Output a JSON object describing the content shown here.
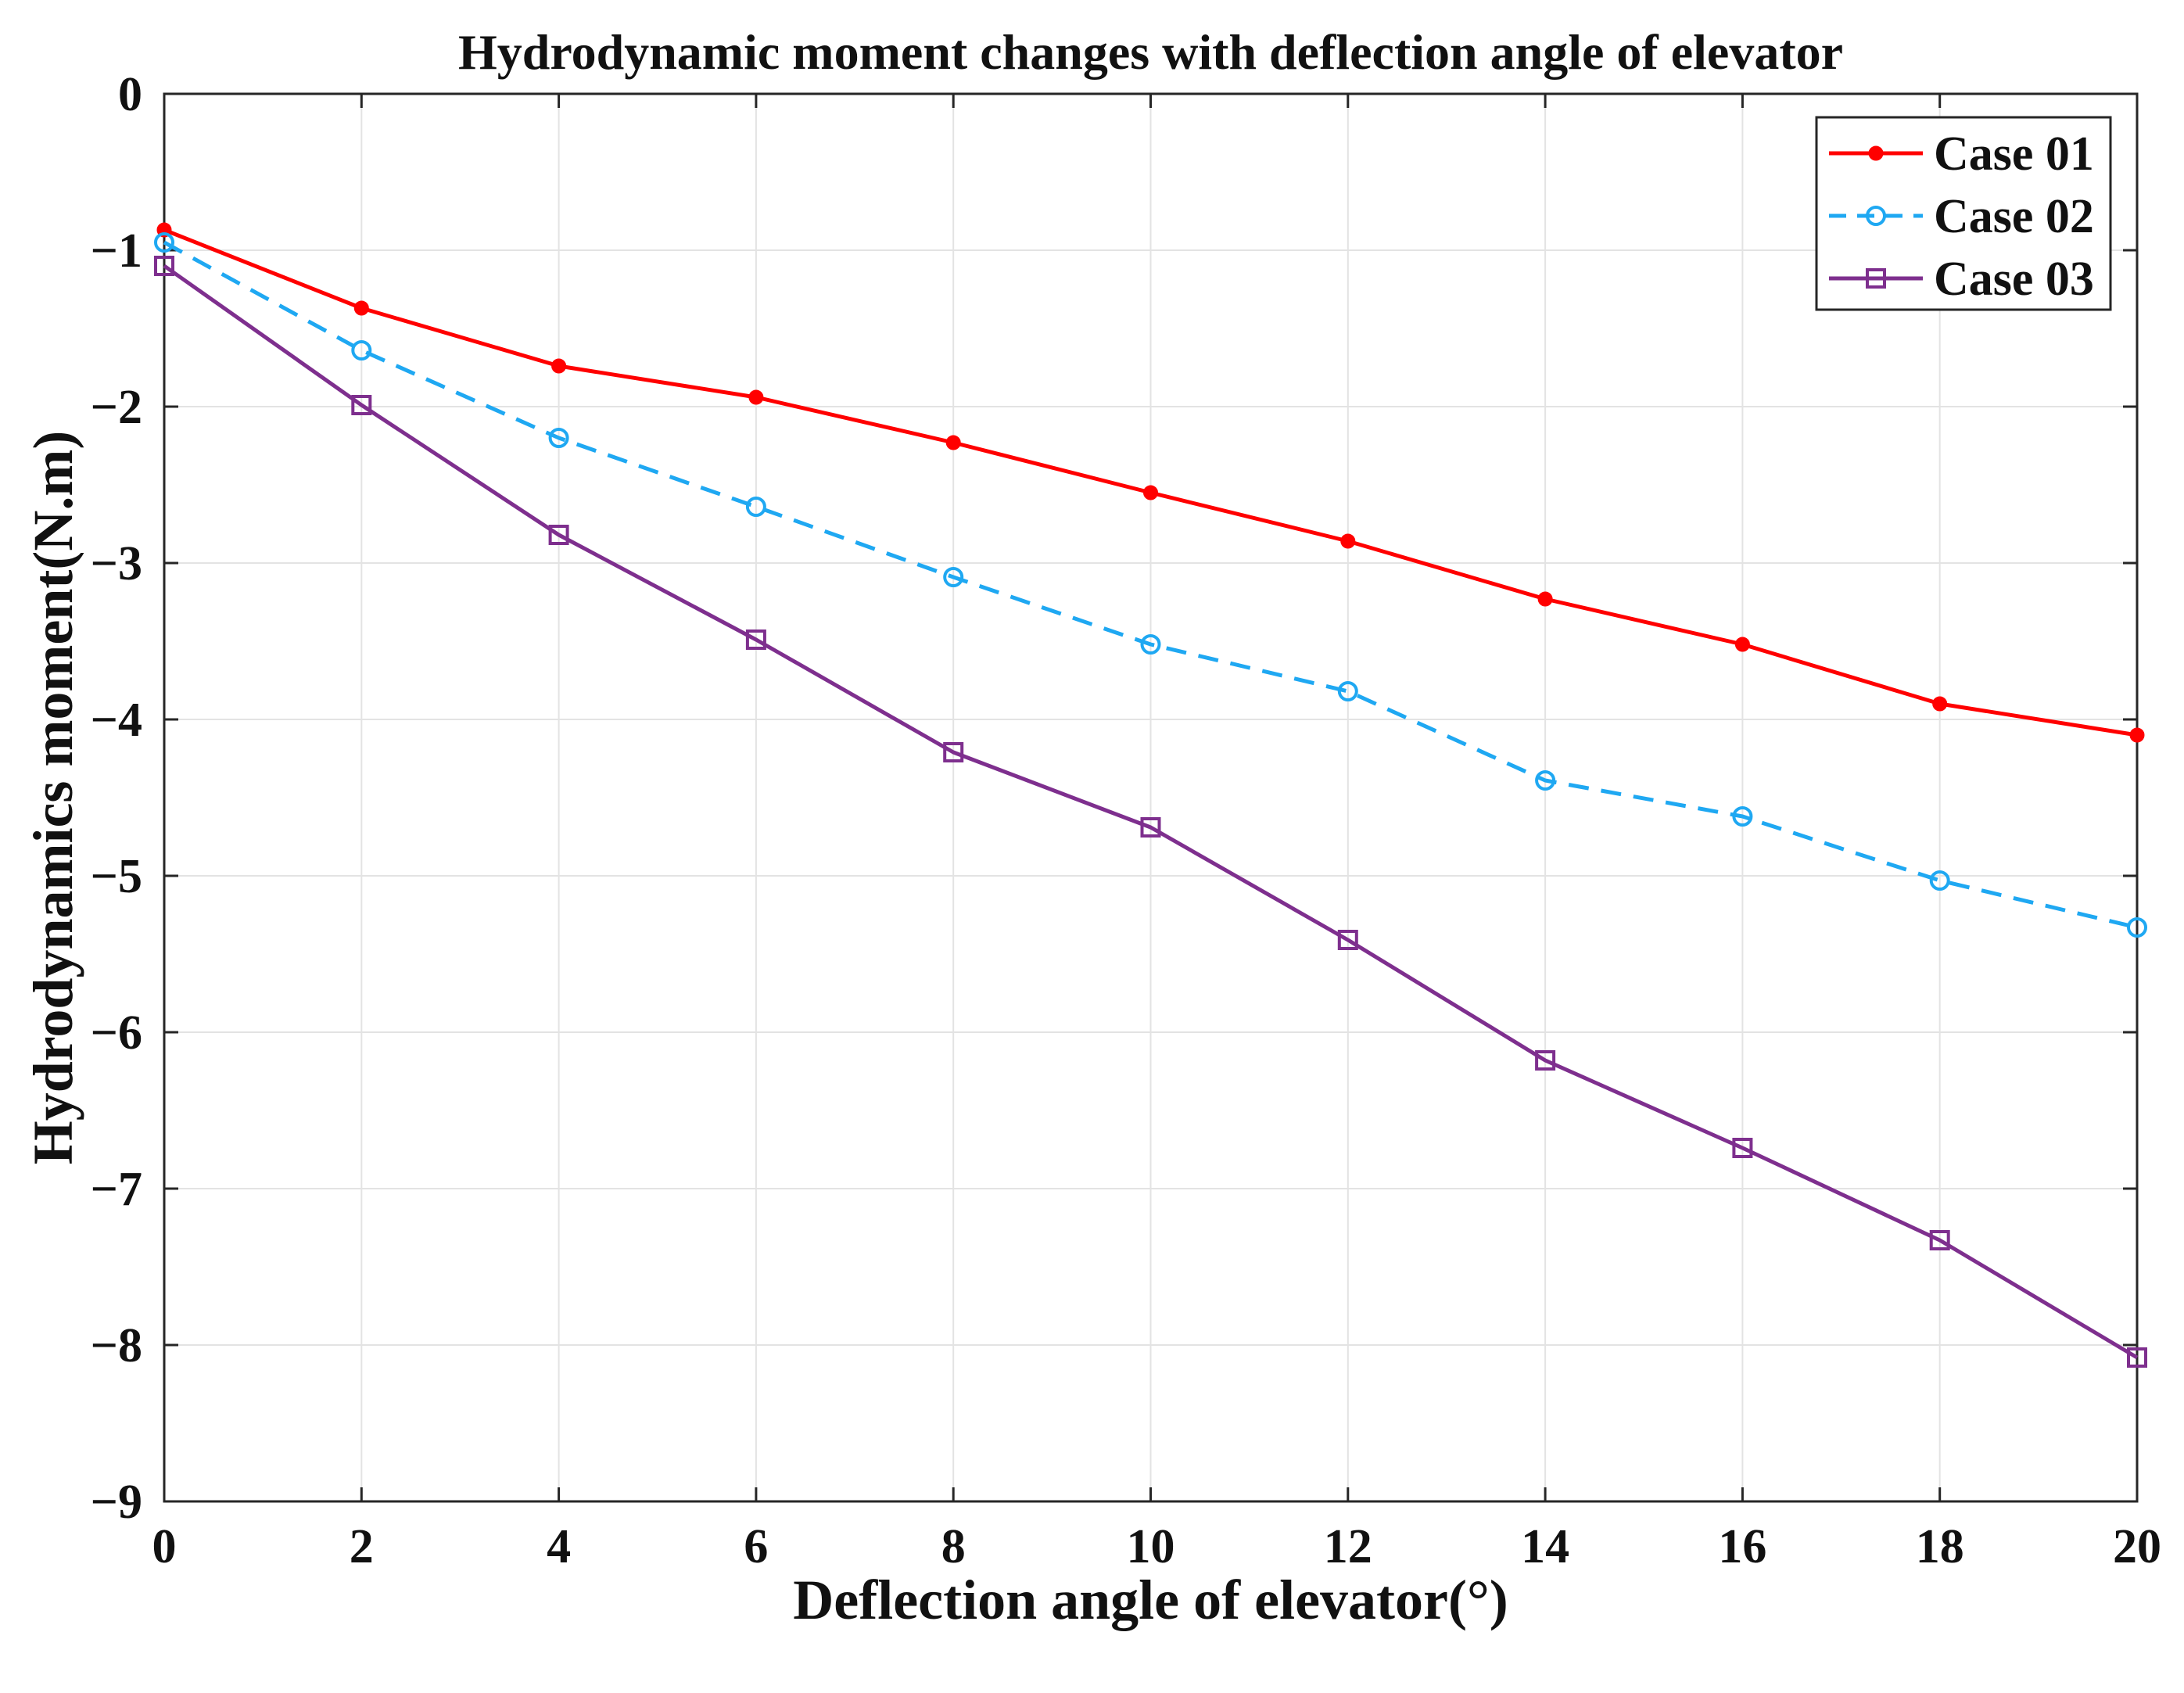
{
  "chart_data": {
    "type": "line",
    "title": "Hydrodynamic moment changes with deflection angle of elevator",
    "xlabel": "Deflection angle of elevator(°)",
    "ylabel": "Hydrodynamics moment(N.m)",
    "xlim": [
      0,
      20
    ],
    "ylim": [
      -9,
      0
    ],
    "xticks": [
      0,
      2,
      4,
      6,
      8,
      10,
      12,
      14,
      16,
      18,
      20
    ],
    "yticks": [
      0,
      -1,
      -2,
      -3,
      -4,
      -5,
      -6,
      -7,
      -8,
      -9
    ],
    "xtick_labels": [
      "0",
      "2",
      "4",
      "6",
      "8",
      "10",
      "12",
      "14",
      "16",
      "18",
      "20"
    ],
    "ytick_labels": [
      "0",
      "−1",
      "−2",
      "−3",
      "−4",
      "−5",
      "−6",
      "−7",
      "−8",
      "−9"
    ],
    "grid": true,
    "legend_position": "top-right",
    "x": [
      0,
      2,
      4,
      6,
      8,
      10,
      12,
      14,
      16,
      18,
      20
    ],
    "series": [
      {
        "name": "Case 01",
        "color": "#ff0000",
        "line_style": "solid",
        "marker": "filled-circle",
        "values": [
          -0.87,
          -1.37,
          -1.74,
          -1.94,
          -2.23,
          -2.55,
          -2.86,
          -3.23,
          -3.52,
          -3.9,
          -4.1
        ]
      },
      {
        "name": "Case 02",
        "color": "#1fa8f2",
        "line_style": "dashed",
        "marker": "open-circle",
        "values": [
          -0.95,
          -1.64,
          -2.2,
          -2.64,
          -3.09,
          -3.52,
          -3.82,
          -4.39,
          -4.62,
          -5.03,
          -5.33
        ]
      },
      {
        "name": "Case 03",
        "color": "#7e2f8e",
        "line_style": "solid",
        "marker": "open-square",
        "values": [
          -1.1,
          -1.99,
          -2.82,
          -3.49,
          -4.21,
          -4.69,
          -5.41,
          -6.18,
          -6.74,
          -7.33,
          -8.08
        ]
      }
    ]
  }
}
